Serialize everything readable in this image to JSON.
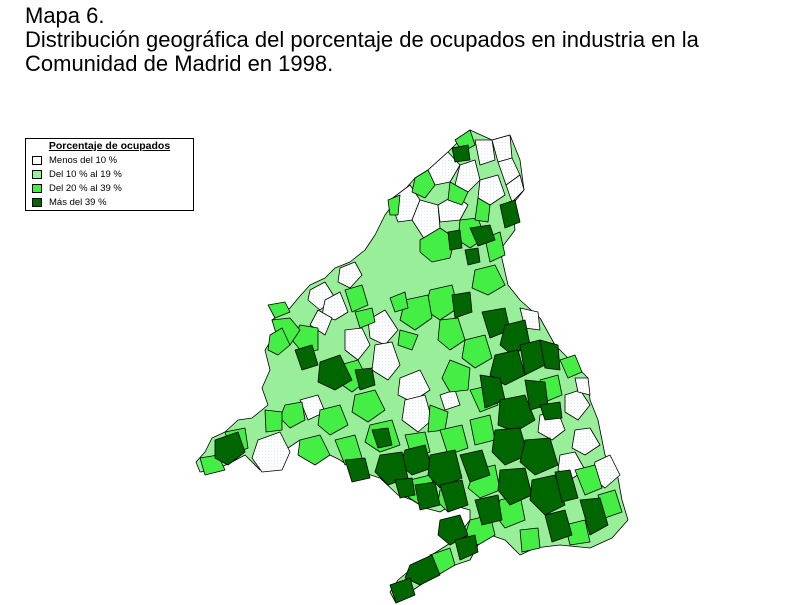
{
  "title": {
    "line1": "Mapa 6.",
    "line2": "Distribución geográfica del porcentaje de ocupados en industria en la",
    "line3": "Comunidad de Madrid en 1998."
  },
  "legend": {
    "title": "Porcentaje de ocupados",
    "items": [
      {
        "label": "Menos del 10 %",
        "color": "#ffffff"
      },
      {
        "label": "Del 10 % al 19 %",
        "color": "#99ee99"
      },
      {
        "label": "Del 20 % al 39 %",
        "color": "#44ee44"
      },
      {
        "label": "Más del 39 %",
        "color": "#006600"
      }
    ]
  },
  "map": {
    "region": "Comunidad de Madrid",
    "year": 1998,
    "border_color": "#000000"
  }
}
